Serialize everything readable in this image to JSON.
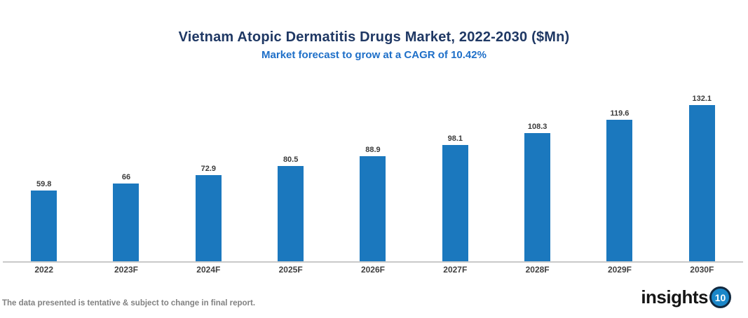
{
  "header": {
    "title": "Vietnam Atopic Dermatitis Drugs Market, 2022-2030 ($Mn)",
    "subtitle": "Market forecast to grow at a CAGR of 10.42%"
  },
  "chart_data": {
    "type": "bar",
    "categories": [
      "2022",
      "2023F",
      "2024F",
      "2025F",
      "2026F",
      "2027F",
      "2028F",
      "2029F",
      "2030F"
    ],
    "values": [
      59.8,
      66,
      72.9,
      80.5,
      88.9,
      98.1,
      108.3,
      119.6,
      132.1
    ],
    "title": "Vietnam Atopic Dermatitis Drugs Market, 2022-2030 ($Mn)",
    "subtitle": "Market forecast to grow at a CAGR of 10.42%",
    "xlabel": "",
    "ylabel": "",
    "ylim": [
      0,
      140
    ],
    "grid": false,
    "legend": false,
    "data_labels": true,
    "bar_color": "#1B78BE"
  },
  "footer": {
    "disclaimer": "The data presented is tentative & subject to change in final report."
  },
  "logo": {
    "text": "insights",
    "badge": "10"
  },
  "colors": {
    "bar": "#1B78BE",
    "title": "#1F3864",
    "subtitle": "#1E6FC8",
    "axis_line": "#C9C9C9",
    "value_label": "#3B3B3B",
    "tick_label": "#404040",
    "footer_text": "#828282",
    "logo_text": "#151515",
    "logo_badge_fill": "#1B87C9",
    "logo_badge_ring": "#12293F",
    "background": "#FFFFFF"
  }
}
